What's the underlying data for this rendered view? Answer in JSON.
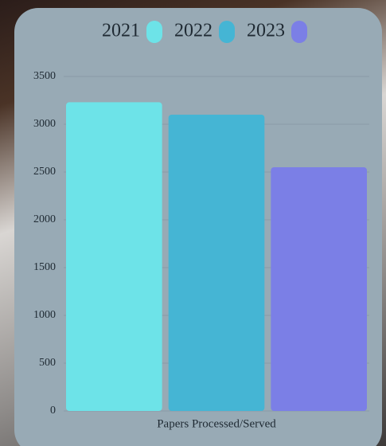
{
  "chart_data": {
    "type": "bar",
    "categories": [
      "Papers Processed/Served"
    ],
    "series": [
      {
        "name": "2021",
        "color": "#6de3e8",
        "values": [
          3230
        ]
      },
      {
        "name": "2022",
        "color": "#45b5d4",
        "values": [
          3100
        ]
      },
      {
        "name": "2023",
        "color": "#7b7fe6",
        "values": [
          2550
        ]
      }
    ],
    "ylim": [
      0,
      3500
    ],
    "yticks": [
      0,
      500,
      1000,
      1500,
      2000,
      2500,
      3000,
      3500
    ],
    "grid": true
  }
}
